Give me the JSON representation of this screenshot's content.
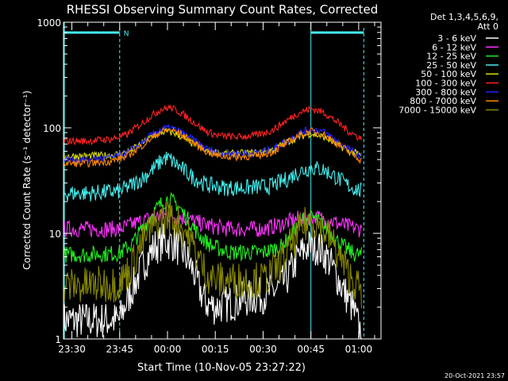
{
  "chart_data": {
    "type": "line",
    "title": "RHESSI Observing Summary Count Rates, Corrected",
    "xlabel": "Start Time (10-Nov-05 23:27:22)",
    "ylabel": "Corrected Count Rate (s⁻¹ detector⁻¹)",
    "y_scale": "log",
    "ylim": [
      1,
      1000
    ],
    "y_ticks": [
      {
        "value": 1,
        "label": "1"
      },
      {
        "value": 10,
        "label": "10"
      },
      {
        "value": 100,
        "label": "100"
      },
      {
        "value": 1000,
        "label": "1000"
      }
    ],
    "xlim_minutes_after_2330": [
      -2.63,
      97
    ],
    "x_ticks": [
      {
        "value": 0,
        "label": "23:30"
      },
      {
        "value": 15,
        "label": "23:45"
      },
      {
        "value": 30,
        "label": "00:00"
      },
      {
        "value": 45,
        "label": "00:15"
      },
      {
        "value": 60,
        "label": "00:30"
      },
      {
        "value": 75,
        "label": "00:45"
      },
      {
        "value": 90,
        "label": "01:00"
      }
    ],
    "legend_header": [
      "Det 1,3,4,5,6,9,",
      "Att 0"
    ],
    "legend_placement": "right",
    "night_label": "N",
    "footer_date": "20-Oct-2021 23:57",
    "series": [
      {
        "name": "3 - 6 keV",
        "color": "#ffffff",
        "points": [
          [
            -2.6,
            1.5
          ],
          [
            0,
            1.5
          ],
          [
            8,
            1.5
          ],
          [
            15,
            1.5
          ],
          [
            17,
            2.2
          ],
          [
            20,
            3.5
          ],
          [
            23,
            5.5
          ],
          [
            26,
            7.5
          ],
          [
            29,
            8.5
          ],
          [
            32,
            8.0
          ],
          [
            35,
            6.5
          ],
          [
            38,
            4.5
          ],
          [
            40,
            3.0
          ],
          [
            42,
            2.2
          ],
          [
            45,
            2.0
          ],
          [
            50,
            2.2
          ],
          [
            55,
            2.4
          ],
          [
            60,
            2.6
          ],
          [
            65,
            3.0
          ],
          [
            68,
            4.0
          ],
          [
            71,
            6.0
          ],
          [
            74,
            7.5
          ],
          [
            77,
            7.5
          ],
          [
            80,
            6.0
          ],
          [
            83,
            4.0
          ],
          [
            85,
            3.0
          ],
          [
            88,
            2.0
          ],
          [
            90,
            1.3
          ],
          [
            91,
            1.1
          ]
        ]
      },
      {
        "name": "6 - 12 keV",
        "color": "#ff33ff",
        "points": [
          [
            -2.6,
            11
          ],
          [
            5,
            11
          ],
          [
            15,
            11
          ],
          [
            20,
            12.5
          ],
          [
            25,
            14
          ],
          [
            30,
            15
          ],
          [
            35,
            14
          ],
          [
            40,
            12.5
          ],
          [
            45,
            11.5
          ],
          [
            50,
            11
          ],
          [
            55,
            11
          ],
          [
            60,
            11
          ],
          [
            65,
            12
          ],
          [
            70,
            13.5
          ],
          [
            75,
            14.5
          ],
          [
            80,
            13.5
          ],
          [
            85,
            12
          ],
          [
            90,
            11
          ],
          [
            91,
            11
          ]
        ]
      },
      {
        "name": "12 - 25 keV",
        "color": "#22ee22",
        "points": [
          [
            -2.6,
            6.3
          ],
          [
            5,
            6.3
          ],
          [
            15,
            6.5
          ],
          [
            19,
            8
          ],
          [
            22,
            11
          ],
          [
            25,
            15
          ],
          [
            28,
            19
          ],
          [
            30,
            21
          ],
          [
            33,
            19
          ],
          [
            36,
            14
          ],
          [
            40,
            9.5
          ],
          [
            44,
            7.5
          ],
          [
            50,
            6.6
          ],
          [
            60,
            6.6
          ],
          [
            66,
            7.5
          ],
          [
            70,
            11
          ],
          [
            73,
            14
          ],
          [
            76,
            14
          ],
          [
            80,
            11
          ],
          [
            84,
            8
          ],
          [
            88,
            6.5
          ],
          [
            91,
            6.2
          ]
        ]
      },
      {
        "name": "25 - 50 keV",
        "color": "#44eeee",
        "points": [
          [
            -2.6,
            24
          ],
          [
            5,
            24
          ],
          [
            15,
            25
          ],
          [
            18,
            28
          ],
          [
            22,
            33
          ],
          [
            26,
            42
          ],
          [
            29,
            52
          ],
          [
            31,
            50
          ],
          [
            34,
            42
          ],
          [
            38,
            34
          ],
          [
            42,
            29
          ],
          [
            48,
            27
          ],
          [
            55,
            27
          ],
          [
            62,
            28
          ],
          [
            67,
            32
          ],
          [
            71,
            38
          ],
          [
            75,
            42
          ],
          [
            79,
            40
          ],
          [
            83,
            34
          ],
          [
            87,
            28
          ],
          [
            91,
            25
          ]
        ]
      },
      {
        "name": "50 - 100 keV",
        "color": "#dddd00",
        "points": [
          [
            -2.6,
            54
          ],
          [
            5,
            54
          ],
          [
            12,
            55
          ],
          [
            17,
            58
          ],
          [
            21,
            68
          ],
          [
            25,
            82
          ],
          [
            29,
            92
          ],
          [
            32,
            90
          ],
          [
            35,
            80
          ],
          [
            39,
            68
          ],
          [
            43,
            59
          ],
          [
            50,
            57
          ],
          [
            58,
            58
          ],
          [
            63,
            62
          ],
          [
            67,
            72
          ],
          [
            71,
            82
          ],
          [
            75,
            88
          ],
          [
            79,
            82
          ],
          [
            83,
            70
          ],
          [
            87,
            60
          ],
          [
            91,
            55
          ]
        ]
      },
      {
        "name": "100 - 300 keV",
        "color": "#ff2222",
        "points": [
          [
            -2.6,
            75
          ],
          [
            5,
            75
          ],
          [
            12,
            78
          ],
          [
            17,
            85
          ],
          [
            21,
            105
          ],
          [
            25,
            130
          ],
          [
            28,
            150
          ],
          [
            31,
            155
          ],
          [
            34,
            140
          ],
          [
            38,
            115
          ],
          [
            42,
            93
          ],
          [
            46,
            84
          ],
          [
            52,
            82
          ],
          [
            58,
            85
          ],
          [
            63,
            95
          ],
          [
            67,
            115
          ],
          [
            71,
            138
          ],
          [
            75,
            152
          ],
          [
            79,
            140
          ],
          [
            83,
            115
          ],
          [
            87,
            92
          ],
          [
            91,
            78
          ]
        ]
      },
      {
        "name": "300 - 800 keV",
        "color": "#2222ff",
        "points": [
          [
            -2.6,
            50
          ],
          [
            5,
            50
          ],
          [
            12,
            52
          ],
          [
            17,
            57
          ],
          [
            21,
            68
          ],
          [
            25,
            85
          ],
          [
            28,
            97
          ],
          [
            31,
            100
          ],
          [
            34,
            92
          ],
          [
            38,
            77
          ],
          [
            42,
            64
          ],
          [
            46,
            58
          ],
          [
            52,
            57
          ],
          [
            58,
            58
          ],
          [
            63,
            63
          ],
          [
            67,
            74
          ],
          [
            71,
            88
          ],
          [
            75,
            98
          ],
          [
            79,
            92
          ],
          [
            83,
            76
          ],
          [
            87,
            63
          ],
          [
            91,
            52
          ]
        ]
      },
      {
        "name": "800 - 7000 keV",
        "color": "#ff8800",
        "points": [
          [
            -2.6,
            46
          ],
          [
            5,
            46
          ],
          [
            12,
            48
          ],
          [
            17,
            53
          ],
          [
            21,
            64
          ],
          [
            25,
            80
          ],
          [
            28,
            92
          ],
          [
            31,
            96
          ],
          [
            34,
            88
          ],
          [
            38,
            73
          ],
          [
            42,
            60
          ],
          [
            46,
            54
          ],
          [
            52,
            53
          ],
          [
            58,
            54
          ],
          [
            63,
            59
          ],
          [
            67,
            70
          ],
          [
            71,
            84
          ],
          [
            75,
            93
          ],
          [
            79,
            87
          ],
          [
            83,
            72
          ],
          [
            87,
            59
          ],
          [
            91,
            49
          ]
        ]
      },
      {
        "name": "7000 - 15000 keV",
        "color": "#888800",
        "points": [
          [
            -2.6,
            3.2
          ],
          [
            5,
            3.2
          ],
          [
            15,
            3.4
          ],
          [
            18,
            4.5
          ],
          [
            21,
            7
          ],
          [
            24,
            10
          ],
          [
            27,
            13
          ],
          [
            30,
            14.5
          ],
          [
            33,
            13
          ],
          [
            36,
            10
          ],
          [
            39,
            6.5
          ],
          [
            42,
            4.2
          ],
          [
            45,
            3.6
          ],
          [
            50,
            3.6
          ],
          [
            55,
            3.6
          ],
          [
            60,
            3.6
          ],
          [
            64,
            4.5
          ],
          [
            68,
            7
          ],
          [
            72,
            11
          ],
          [
            75,
            13.5
          ],
          [
            78,
            12
          ],
          [
            81,
            9
          ],
          [
            84,
            6
          ],
          [
            87,
            4
          ],
          [
            90,
            3
          ],
          [
            91,
            2.8
          ]
        ]
      }
    ]
  }
}
